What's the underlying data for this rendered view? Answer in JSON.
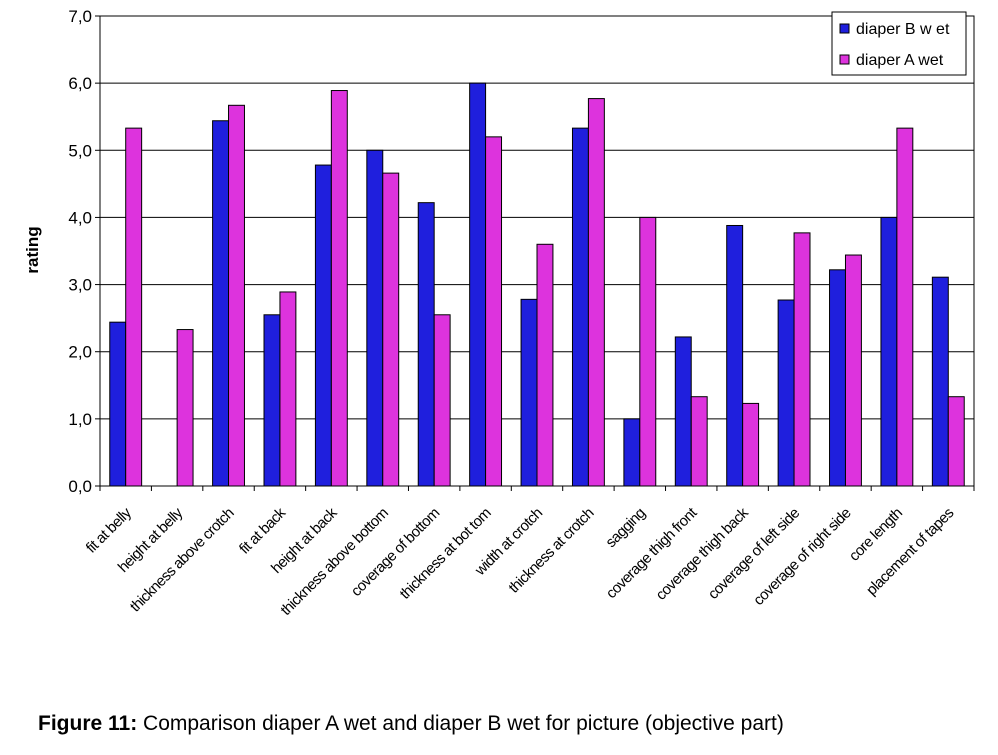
{
  "chart_data": {
    "type": "bar",
    "title": "",
    "xlabel": "",
    "ylabel": "rating",
    "ylim": [
      0,
      7
    ],
    "y_ticks": [
      "0,0",
      "1,0",
      "2,0",
      "3,0",
      "4,0",
      "5,0",
      "6,0",
      "7,0"
    ],
    "grid": true,
    "legend_position": "top-right",
    "categories": [
      "fit at belly",
      "height at belly",
      "thickness above crotch",
      "fit at back",
      "height at back",
      "thickness above bottom",
      "coverage of bottom",
      "thickness at bot tom",
      "width at crotch",
      "thickness at crotch",
      "sagging",
      "coverage thigh front",
      "coverage thigh back",
      "coverage of left side",
      "coverage of right side",
      "core length",
      "placement of tapes"
    ],
    "series": [
      {
        "name": "diaper B w et",
        "color": "#1f1fdd",
        "values": [
          2.44,
          0,
          5.44,
          2.55,
          4.78,
          5.0,
          4.22,
          6.0,
          2.78,
          5.33,
          1.0,
          2.22,
          3.88,
          2.77,
          3.22,
          4.0,
          3.11
        ]
      },
      {
        "name": "diaper A  wet",
        "color": "#dd33dd",
        "values": [
          5.33,
          2.33,
          5.67,
          2.89,
          5.89,
          4.66,
          2.55,
          5.2,
          3.6,
          5.77,
          4.0,
          1.33,
          1.23,
          3.77,
          3.44,
          5.33,
          1.33
        ]
      }
    ]
  },
  "caption": {
    "label": "Figure 11:",
    "text": " Comparison diaper A wet and diaper B wet for picture (objective part)"
  }
}
